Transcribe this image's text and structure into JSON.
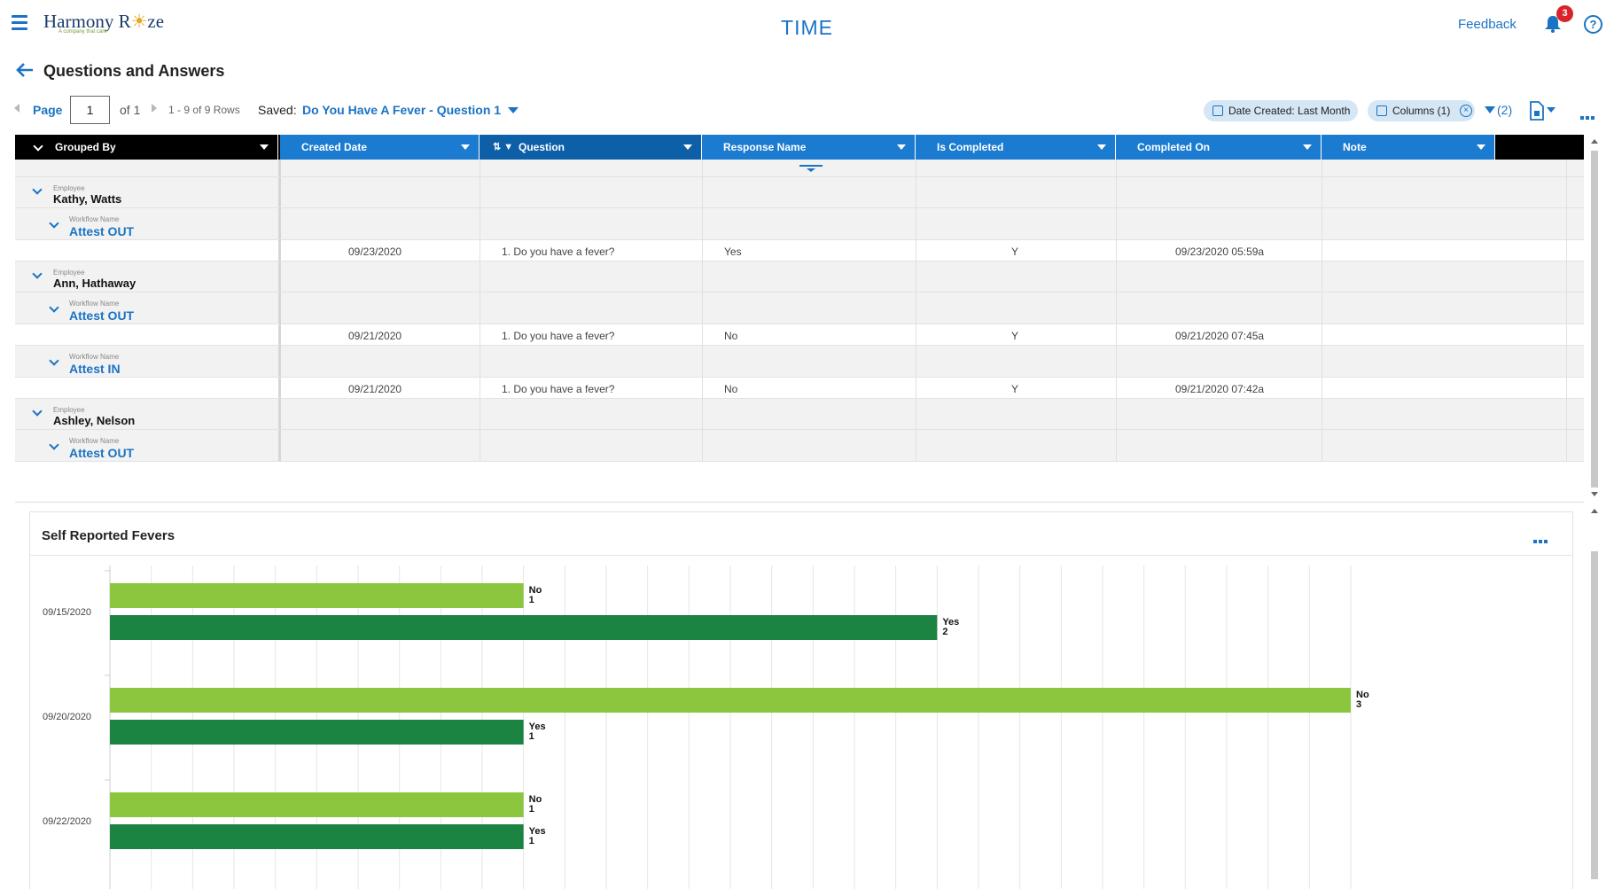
{
  "app": {
    "logo_text_1": "Harmony R",
    "logo_text_sun": "☀",
    "logo_text_2": "ze",
    "logo_tagline": "A company that care",
    "title": "TIME",
    "feedback_label": "Feedback",
    "notification_count": "3",
    "help_label": "?"
  },
  "page": {
    "title": "Questions and Answers"
  },
  "pager": {
    "page_label": "Page",
    "page_value": "1",
    "of_label": "of 1",
    "rows_info": "1 - 9 of 9 Rows",
    "saved_label": "Saved:",
    "saved_value": "Do You Have A Fever - Question 1"
  },
  "toolbar": {
    "date_chip": "Date Created: Last Month",
    "columns_chip": "Columns (1)",
    "filter_count": "(2)"
  },
  "grid": {
    "columns": [
      {
        "label": "Grouped By"
      },
      {
        "label": "Created Date"
      },
      {
        "label": "Question"
      },
      {
        "label": "Response Name"
      },
      {
        "label": "Is Completed"
      },
      {
        "label": "Completed On"
      },
      {
        "label": "Note"
      }
    ],
    "rows": [
      {
        "type": "employee",
        "caption": "Employee",
        "name": "Kathy, Watts"
      },
      {
        "type": "workflow",
        "caption": "Workflow Name",
        "name": "Attest OUT"
      },
      {
        "type": "data",
        "created": "09/23/2020",
        "question": "1. Do you have a fever?",
        "response": "Yes",
        "completed": "Y",
        "completed_on": "09/23/2020 05:59a",
        "note": ""
      },
      {
        "type": "employee",
        "caption": "Employee",
        "name": "Ann, Hathaway"
      },
      {
        "type": "workflow",
        "caption": "Workflow Name",
        "name": "Attest OUT"
      },
      {
        "type": "data",
        "created": "09/21/2020",
        "question": "1. Do you have a fever?",
        "response": "No",
        "completed": "Y",
        "completed_on": "09/21/2020 07:45a",
        "note": ""
      },
      {
        "type": "workflow",
        "caption": "Workflow Name",
        "name": "Attest IN"
      },
      {
        "type": "data",
        "created": "09/21/2020",
        "question": "1. Do you have a fever?",
        "response": "No",
        "completed": "Y",
        "completed_on": "09/21/2020 07:42a",
        "note": ""
      },
      {
        "type": "employee",
        "caption": "Employee",
        "name": "Ashley, Nelson"
      },
      {
        "type": "workflow",
        "caption": "Workflow Name",
        "name": "Attest OUT"
      }
    ]
  },
  "chart_panel": {
    "title": "Self Reported Fevers"
  },
  "chart_data": {
    "type": "bar",
    "orientation": "horizontal",
    "title": "Self Reported Fevers",
    "xlabel": "",
    "ylabel": "",
    "categories": [
      "09/15/2020",
      "09/20/2020",
      "09/22/2020"
    ],
    "series": [
      {
        "name": "No",
        "values": [
          1,
          3,
          1
        ],
        "color": "#8cc63f"
      },
      {
        "name": "Yes",
        "values": [
          2,
          1,
          1
        ],
        "color": "#1b8442"
      }
    ],
    "xlim": [
      0,
      3
    ],
    "grid": true
  },
  "colors": {
    "accent": "#1a73c4",
    "header_blue": "#1a7bd0",
    "badge_red": "#d8232a"
  }
}
